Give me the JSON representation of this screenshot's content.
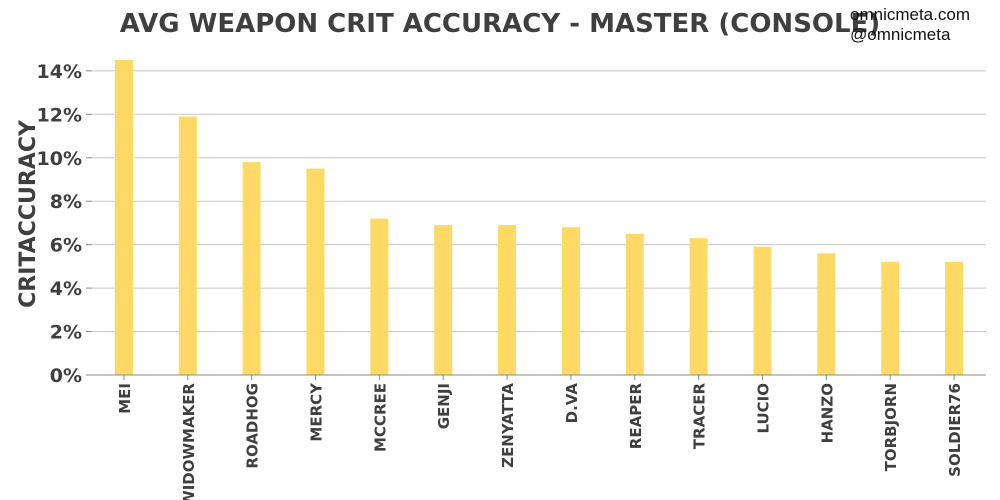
{
  "chart_data": {
    "type": "bar",
    "title": "AVG WEAPON CRIT ACCURACY - MASTER (CONSOLE)",
    "xlabel": "",
    "ylabel": "CRITACCURACY",
    "categories": [
      "MEI",
      "WIDOWMAKER",
      "ROADHOG",
      "MERCY",
      "MCCREE",
      "GENJI",
      "ZENYATTA",
      "D.VA",
      "REAPER",
      "TRACER",
      "LUCIO",
      "HANZO",
      "TORBJORN",
      "SOLDIER76"
    ],
    "values": [
      14.5,
      11.9,
      9.8,
      9.5,
      7.2,
      6.9,
      6.9,
      6.8,
      6.5,
      6.3,
      5.9,
      5.6,
      5.2,
      5.2
    ],
    "ylim": [
      0,
      14.5
    ],
    "yticks": [
      0,
      2,
      4,
      6,
      8,
      10,
      12,
      14
    ],
    "ytick_labels": [
      "0%",
      "2%",
      "4%",
      "6%",
      "8%",
      "10%",
      "12%",
      "14%"
    ],
    "grid": true,
    "legend": "none",
    "bar_color": "#FFD966"
  },
  "watermark": {
    "site": "omnicmeta.com",
    "handle": "@omnicmeta"
  }
}
